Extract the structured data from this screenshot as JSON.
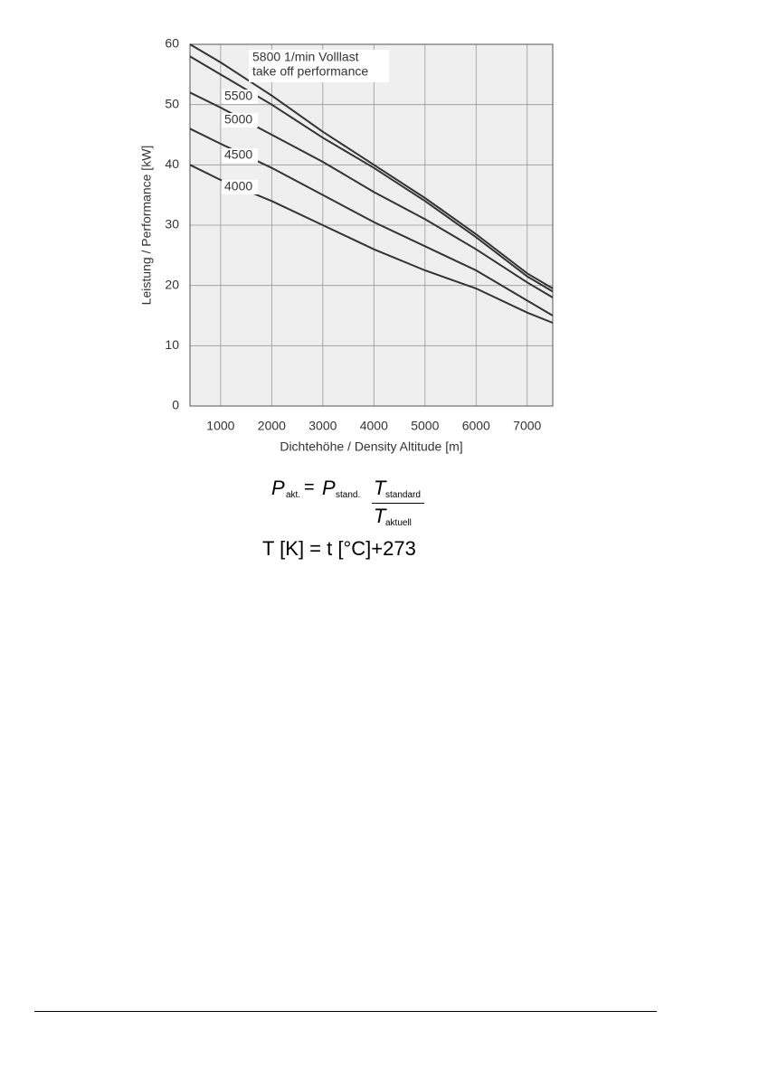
{
  "chart_data": {
    "type": "line",
    "x_label": "Dichtehöhe / Density Altitude [m]",
    "y_label": "Leistung / Performance [kW]",
    "x": [
      400,
      1000,
      2000,
      3000,
      4000,
      5000,
      6000,
      7000,
      7500
    ],
    "xlim": [
      400,
      7500
    ],
    "xticks": [
      1000,
      2000,
      3000,
      4000,
      5000,
      6000,
      7000
    ],
    "ylim": [
      0,
      60
    ],
    "yticks": [
      0,
      10,
      20,
      30,
      40,
      50,
      60
    ],
    "grid": true,
    "annotation": "take off performance",
    "series": [
      {
        "name": "5800 1/min Volllast",
        "color": "#333333",
        "values": [
          60,
          57,
          51.5,
          45.5,
          40,
          34.5,
          28.5,
          22,
          19.5
        ]
      },
      {
        "name": "5500",
        "color": "#333333",
        "values": [
          58,
          55,
          50,
          44.5,
          39.5,
          34,
          28,
          21.5,
          19
        ]
      },
      {
        "name": "5000",
        "color": "#333333",
        "values": [
          52,
          49.5,
          45,
          40.5,
          35.5,
          31,
          26,
          20.5,
          18
        ]
      },
      {
        "name": "4500",
        "color": "#333333",
        "values": [
          46,
          43.5,
          39.5,
          35,
          30.5,
          26.5,
          22.5,
          17.5,
          15
        ]
      },
      {
        "name": "4000",
        "color": "#333333",
        "values": [
          40,
          37.5,
          34,
          30,
          26,
          22.5,
          19.5,
          15.5,
          13.8
        ]
      }
    ]
  },
  "formula": {
    "p": "P",
    "akt": "akt.",
    "eq": "=",
    "stand": "stand.",
    "t": "T",
    "standard": "standard",
    "aktuell": "aktuell",
    "kelvin": "T [K] = t [°C]+273"
  }
}
